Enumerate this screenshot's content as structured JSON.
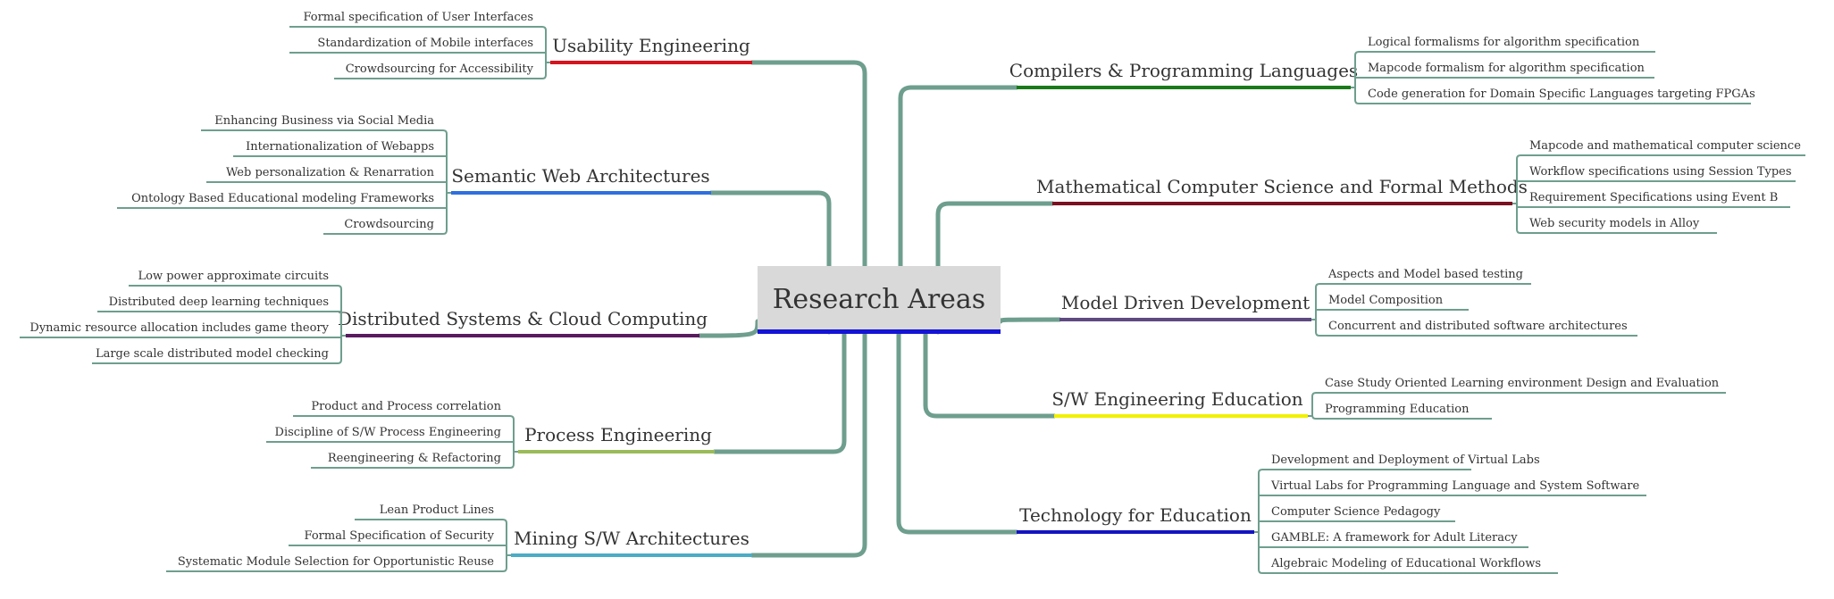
{
  "root": {
    "label": "Research Areas",
    "color": "#1414d6"
  },
  "link_color": "#6e9e8e",
  "left_branches": [
    {
      "label": "Usability Engineering",
      "color": "#d6141e",
      "children": [
        "Formal specification of User Interfaces",
        "Standardization of Mobile interfaces",
        "Crowdsourcing for Accessibility"
      ]
    },
    {
      "label": "Semantic Web Architectures",
      "color": "#2f6fe0",
      "children": [
        "Enhancing Business via Social Media",
        "Internationalization of Webapps",
        "Web personalization & Renarration",
        "Ontology Based Educational modeling Frameworks",
        "Crowdsourcing"
      ]
    },
    {
      "label": "Distributed Systems & Cloud Computing",
      "color": "#5a1a5e",
      "children": [
        "Low power approximate circuits",
        "Distributed deep learning techniques",
        "Dynamic resource allocation includes game theory",
        "Large scale distributed model checking"
      ]
    },
    {
      "label": "Process Engineering",
      "color": "#9bbb59",
      "children": [
        "Product and Process correlation",
        "Discipline of S/W Process Engineering",
        "Reengineering & Refactoring"
      ]
    },
    {
      "label": "Mining S/W Architectures",
      "color": "#4bacc6",
      "children": [
        "Lean Product Lines",
        "Formal Specification of Security",
        "Systematic Module Selection for Opportunistic Reuse"
      ]
    }
  ],
  "right_branches": [
    {
      "label": "Compilers & Programming Languages",
      "color": "#1a7a1a",
      "children": [
        "Logical formalisms for algorithm specification",
        "Mapcode formalism for algorithm specification",
        "Code generation for Domain Specific Languages targeting FPGAs"
      ]
    },
    {
      "label": "Mathematical Computer Science and Formal Methods",
      "color": "#7a1020",
      "children": [
        "Mapcode and mathematical computer science",
        "Workflow specifications using Session Types",
        "Requirement Specifications using Event B",
        "Web security models in Alloy"
      ]
    },
    {
      "label": "Model Driven Development",
      "color": "#5e4a80",
      "children": [
        "Aspects and Model based testing",
        "Model Composition",
        "Concurrent and distributed software architectures"
      ]
    },
    {
      "label": "S/W Engineering Education",
      "color": "#f0f000",
      "children": [
        "Case Study Oriented Learning environment Design and Evaluation",
        "Programming Education"
      ]
    },
    {
      "label": "Technology for Education",
      "color": "#1414c0",
      "children": [
        "Development and Deployment of Virtual Labs",
        "Virtual Labs for Programming Language and System Software",
        "Computer Science Pedagogy",
        "GAMBLE: A framework for Adult Literacy",
        "Algebraic Modeling of Educational Workflows"
      ]
    }
  ]
}
